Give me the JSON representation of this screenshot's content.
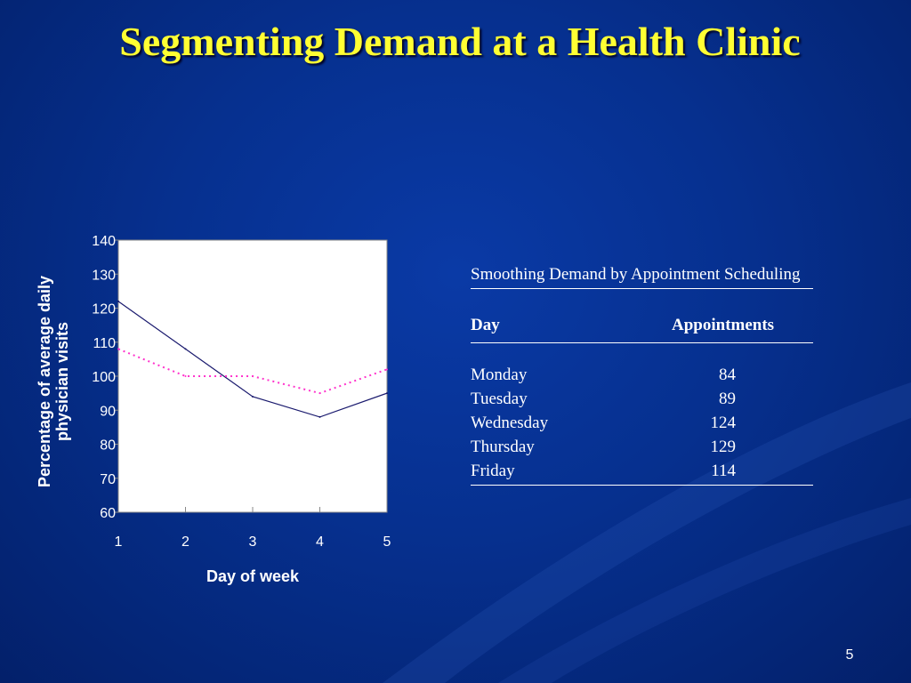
{
  "slide": {
    "title": "Segmenting Demand at a Health Clinic",
    "page_number": "5"
  },
  "chart_data": {
    "type": "line",
    "x": [
      1,
      2,
      3,
      4,
      5
    ],
    "series": [
      {
        "values": [
          122,
          108,
          94,
          88,
          95
        ],
        "color": "#1a1a6e",
        "style": "solid"
      },
      {
        "values": [
          108,
          100,
          100,
          95,
          102
        ],
        "color": "#ff33cc",
        "style": "dotted"
      }
    ],
    "xlabel": "Day of week",
    "ylabel": "Percentage of average daily physician visits",
    "ylim": [
      60,
      140
    ],
    "yticks": [
      60,
      70,
      80,
      90,
      100,
      110,
      120,
      130,
      140
    ],
    "xticks": [
      1,
      2,
      3,
      4,
      5
    ],
    "plot_background": "#ffffff",
    "grid": false
  },
  "table": {
    "caption": "Smoothing Demand by Appointment Scheduling",
    "headers": {
      "day": "Day",
      "appointments": "Appointments"
    },
    "rows": [
      {
        "day": "Monday",
        "appointments": "84"
      },
      {
        "day": "Tuesday",
        "appointments": "89"
      },
      {
        "day": "Wednesday",
        "appointments": "124"
      },
      {
        "day": "Thursday",
        "appointments": "129"
      },
      {
        "day": "Friday",
        "appointments": "114"
      }
    ]
  }
}
